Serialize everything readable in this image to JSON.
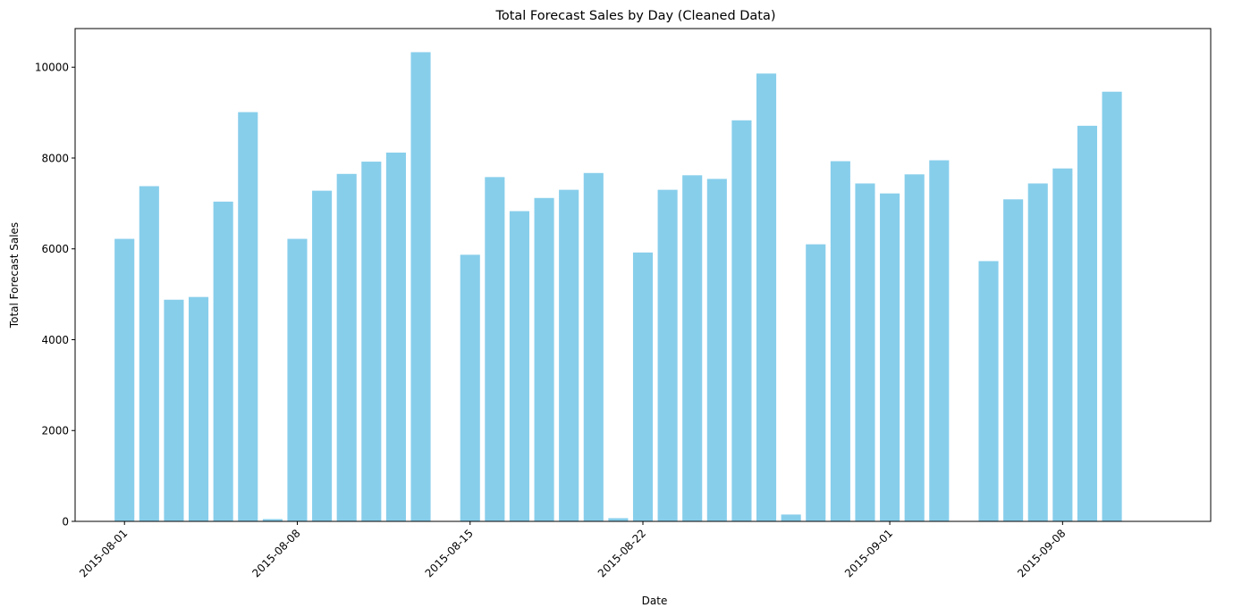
{
  "chart_data": {
    "type": "bar",
    "title": "Total Forecast Sales by Day (Cleaned Data)",
    "xlabel": "Date",
    "ylabel": "Total Forecast Sales",
    "bar_color": "#87CEEB",
    "grid": false,
    "legend": "none",
    "x_range": [
      "2015-07-30",
      "2015-09-14"
    ],
    "ylim": [
      0,
      10850
    ],
    "y_ticks": [
      0,
      2000,
      4000,
      6000,
      8000,
      10000
    ],
    "x_ticks": [
      "2015-08-01",
      "2015-08-08",
      "2015-08-15",
      "2015-08-22",
      "2015-09-01",
      "2015-09-08"
    ],
    "x": [
      "2015-08-01",
      "2015-08-02",
      "2015-08-03",
      "2015-08-04",
      "2015-08-05",
      "2015-08-06",
      "2015-08-07",
      "2015-08-08",
      "2015-08-09",
      "2015-08-10",
      "2015-08-11",
      "2015-08-12",
      "2015-08-13",
      "2015-08-15",
      "2015-08-16",
      "2015-08-17",
      "2015-08-18",
      "2015-08-19",
      "2015-08-20",
      "2015-08-21",
      "2015-08-22",
      "2015-08-23",
      "2015-08-24",
      "2015-08-25",
      "2015-08-26",
      "2015-08-27",
      "2015-08-28",
      "2015-08-29",
      "2015-08-30",
      "2015-08-31",
      "2015-09-01",
      "2015-09-02",
      "2015-09-03",
      "2015-09-05",
      "2015-09-06",
      "2015-09-07",
      "2015-09-08",
      "2015-09-09",
      "2015-09-10"
    ],
    "values": [
      6220,
      7380,
      4880,
      4940,
      7040,
      9010,
      50,
      6220,
      7280,
      7650,
      7920,
      8120,
      10330,
      5870,
      7580,
      6830,
      7120,
      7300,
      7670,
      70,
      5920,
      7300,
      7620,
      7540,
      8830,
      9860,
      150,
      6100,
      7930,
      7440,
      7220,
      7640,
      7950,
      5730,
      7090,
      7440,
      7770,
      8710,
      9460
    ]
  }
}
